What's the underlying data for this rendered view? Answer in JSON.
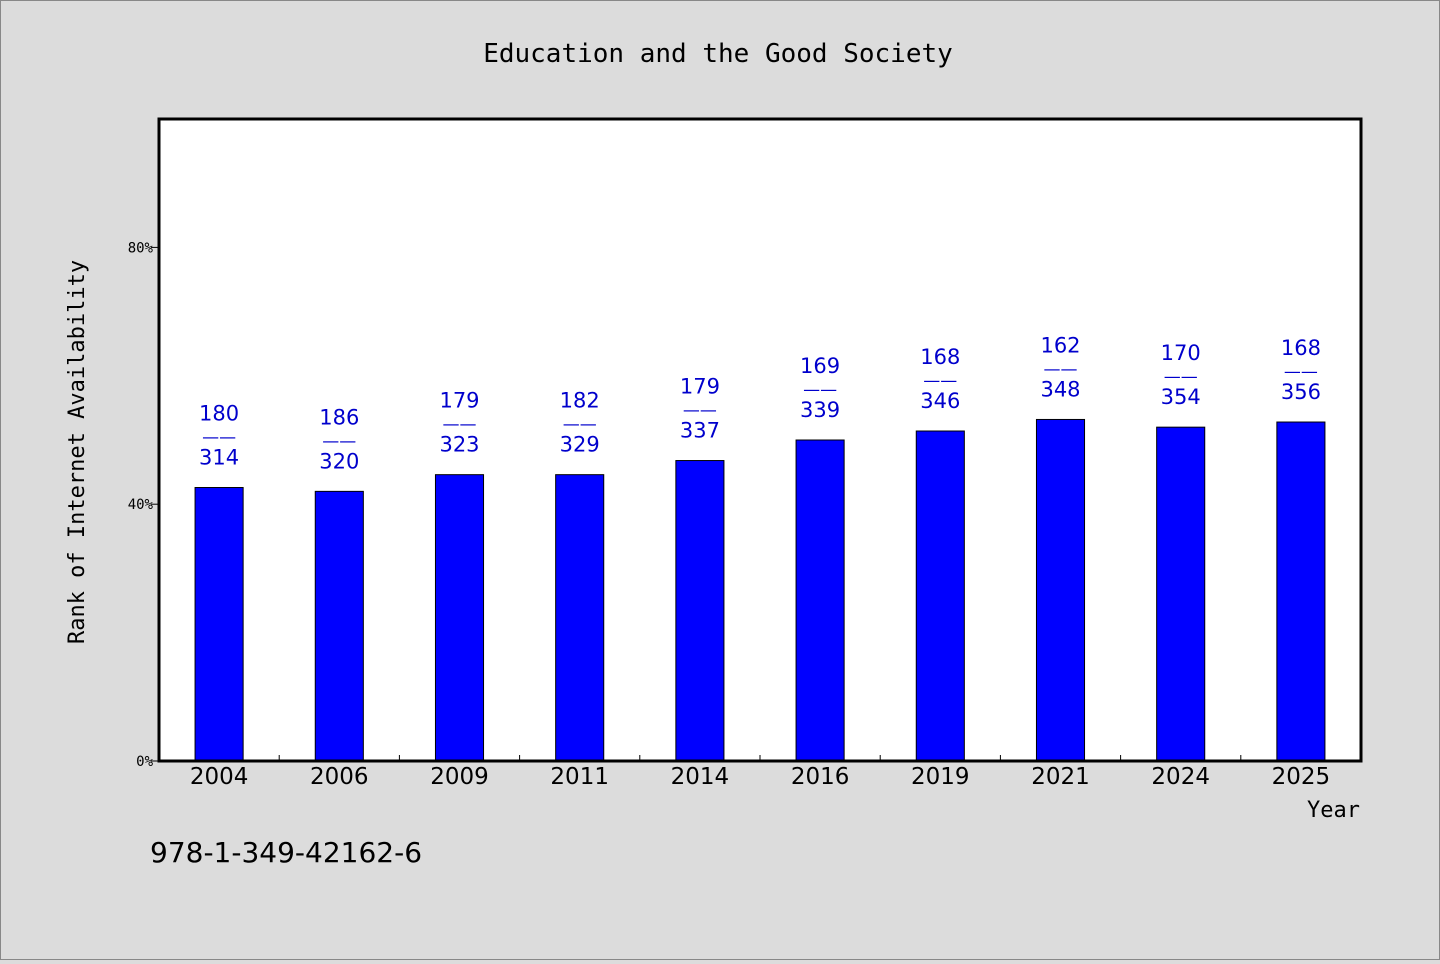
{
  "chart_data": {
    "type": "bar",
    "title": "Education and the Good Society",
    "xlabel": "Year",
    "ylabel": "Rank of Internet Availability",
    "categories": [
      "2004",
      "2006",
      "2009",
      "2011",
      "2014",
      "2016",
      "2019",
      "2021",
      "2024",
      "2025"
    ],
    "series": [
      {
        "values": [
          42.6,
          42.0,
          44.6,
          44.6,
          46.8,
          50.0,
          51.4,
          53.2,
          52.0,
          52.8
        ],
        "labels_top": [
          "180",
          "186",
          "179",
          "182",
          "179",
          "169",
          "168",
          "162",
          "170",
          "168"
        ],
        "labels_bottom": [
          "314",
          "320",
          "323",
          "329",
          "337",
          "339",
          "346",
          "348",
          "354",
          "356"
        ],
        "label_separator": "——"
      }
    ],
    "ylim": [
      0,
      100
    ],
    "yticks": [
      0,
      40,
      80
    ],
    "ytick_labels": [
      "0%",
      "40%",
      "80%"
    ],
    "grid": false,
    "legend": "none",
    "colors": {
      "bar": "#0000ff",
      "bar_edge": "#000000",
      "value_label": "#0000cc",
      "plot_bg": "#ffffff",
      "figure_bg": "#dcdcdc"
    }
  },
  "footnote": "978-1-349-42162-6"
}
